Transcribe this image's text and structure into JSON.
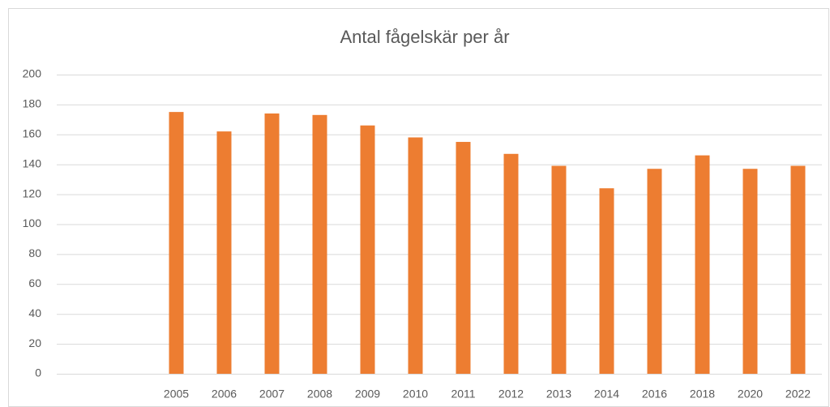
{
  "chart_data": {
    "type": "bar",
    "title": "Antal fågelskär per år",
    "categories": [
      null,
      null,
      "2005",
      "2006",
      "2007",
      "2008",
      "2009",
      "2010",
      "2011",
      "2012",
      "2013",
      "2014",
      "2016",
      "2018",
      "2020",
      "2022"
    ],
    "values": [
      null,
      null,
      175,
      162,
      174,
      173,
      166,
      158,
      155,
      147,
      139,
      124,
      137,
      146,
      137,
      139
    ],
    "color": "#ed7d31",
    "ylim": [
      0,
      200
    ],
    "yticks": [
      0,
      20,
      40,
      60,
      80,
      100,
      120,
      140,
      160,
      180,
      200
    ],
    "grid": true
  }
}
